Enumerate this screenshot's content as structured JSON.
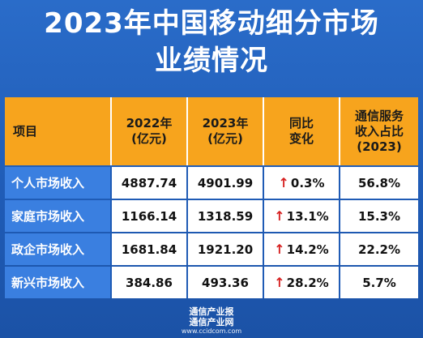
{
  "title": {
    "line1": "2023年中国移动细分市场",
    "line2": "业绩情况"
  },
  "table": {
    "headers": {
      "item": "项目",
      "y2022_line1": "2022年",
      "y2022_line2": "(亿元)",
      "y2023_line1": "2023年",
      "y2023_line2": "(亿元)",
      "yoy_line1": "同比",
      "yoy_line2": "变化",
      "share_line1": "通信服务",
      "share_line2": "收入占比",
      "share_line3": "(2023)"
    },
    "rows": [
      {
        "label": "个人市场收入",
        "y2022": "4887.74",
        "y2023": "4901.99",
        "yoy": "0.3%",
        "share": "56.8%"
      },
      {
        "label": "家庭市场收入",
        "y2022": "1166.14",
        "y2023": "1318.59",
        "yoy": "13.1%",
        "share": "15.3%"
      },
      {
        "label": "政企市场收入",
        "y2022": "1681.84",
        "y2023": "1921.20",
        "yoy": "14.2%",
        "share": "22.2%"
      },
      {
        "label": "新兴市场收入",
        "y2022": "384.86",
        "y2023": "493.36",
        "yoy": "28.2%",
        "share": "5.7%"
      }
    ],
    "arrow_icon": "up-arrow-icon",
    "arrow_color": "#d62020"
  },
  "footer": {
    "line1": "通信产业报",
    "line2": "通信产业网",
    "line3": "www.ccidcom.com"
  },
  "colors": {
    "background": "#1f5bb5",
    "header": "#f7a41d",
    "label_cell": "#3a7fe0"
  }
}
